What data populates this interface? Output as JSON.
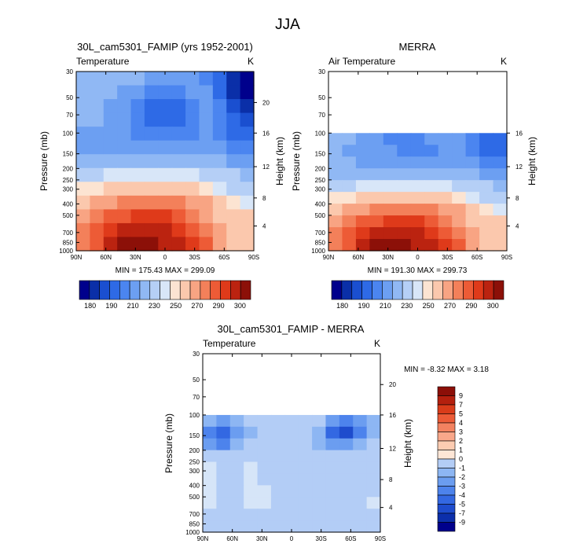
{
  "figure": {
    "title": "JJA"
  },
  "colors": {
    "temperature_scale": [
      "#00008c",
      "#0a2fa8",
      "#1a4fd0",
      "#2e6ae6",
      "#4b85f0",
      "#6c9ff2",
      "#90b8f4",
      "#b5cff6",
      "#d8e6f8",
      "#fce4d2",
      "#fbc8ad",
      "#f8a483",
      "#f3805a",
      "#ed5b36",
      "#df3a1a",
      "#bb2310",
      "#8c1008"
    ],
    "difference_scale": [
      "#00008c",
      "#0c2fab",
      "#1e4ccd",
      "#3368e2",
      "#4d83ec",
      "#6b9df0",
      "#8db6f3",
      "#b3cdf6",
      "#d6e5f8",
      "#fde6d6",
      "#fcccb2",
      "#f9a78a",
      "#f38260",
      "#ec5b37",
      "#d93c1a",
      "#b4200e",
      "#8c0f08"
    ]
  },
  "chart_data": [
    {
      "type": "heatmap",
      "title": "30L_cam5301_FAMIP (yrs 1952-2001)",
      "left_label": "Temperature",
      "right_label": "K",
      "xlabel": "",
      "ylabel": "Pressure (mb)",
      "y2label": "Height (km)",
      "x_ticks": [
        "90N",
        "60N",
        "30N",
        "0",
        "30S",
        "60S",
        "90S"
      ],
      "y_ticks": [
        "30",
        "50",
        "70",
        "100",
        "150",
        "200",
        "250",
        "300",
        "400",
        "500",
        "700",
        "850",
        "1000"
      ],
      "y2_ticks": [
        "20",
        "16",
        "12",
        "8",
        "4"
      ],
      "stats": "MIN = 175.43  MAX = 299.09",
      "colorbar_labels": [
        "180",
        "190",
        "210",
        "230",
        "250",
        "270",
        "290",
        "300"
      ],
      "colorbar_levels": 17,
      "data_top_pressure": 30,
      "grid": [
        [
          6,
          6,
          6,
          6,
          6,
          5,
          5,
          5,
          5,
          4,
          3,
          1,
          0
        ],
        [
          6,
          6,
          6,
          5,
          5,
          4,
          4,
          4,
          5,
          5,
          3,
          1,
          0
        ],
        [
          6,
          6,
          5,
          5,
          4,
          3,
          3,
          3,
          4,
          5,
          4,
          2,
          1
        ],
        [
          6,
          6,
          5,
          5,
          4,
          3,
          3,
          3,
          4,
          5,
          4,
          3,
          2
        ],
        [
          5,
          5,
          5,
          5,
          4,
          4,
          4,
          4,
          4,
          5,
          4,
          3,
          3
        ],
        [
          5,
          5,
          5,
          5,
          5,
          5,
          5,
          5,
          5,
          5,
          5,
          4,
          4
        ],
        [
          6,
          6,
          6,
          6,
          6,
          6,
          6,
          6,
          6,
          6,
          6,
          5,
          5
        ],
        [
          7,
          7,
          8,
          8,
          8,
          8,
          8,
          8,
          8,
          7,
          7,
          7,
          6
        ],
        [
          9,
          9,
          10,
          10,
          10,
          10,
          10,
          10,
          10,
          9,
          8,
          7,
          7
        ],
        [
          10,
          11,
          11,
          12,
          12,
          12,
          12,
          12,
          11,
          11,
          10,
          9,
          8
        ],
        [
          11,
          12,
          13,
          13,
          14,
          14,
          14,
          13,
          12,
          11,
          10,
          10,
          10
        ],
        [
          12,
          13,
          14,
          15,
          15,
          15,
          15,
          14,
          13,
          12,
          11,
          10,
          10
        ],
        [
          12,
          13,
          15,
          16,
          16,
          16,
          15,
          15,
          14,
          13,
          11,
          10,
          10
        ]
      ]
    },
    {
      "type": "heatmap",
      "title": "MERRA",
      "left_label": "Air Temperature",
      "right_label": "K",
      "xlabel": "",
      "ylabel": "Pressure (mb)",
      "y2label": "Height (km)",
      "x_ticks": [
        "90N",
        "60N",
        "30N",
        "0",
        "30S",
        "60S",
        "90S"
      ],
      "y_ticks": [
        "30",
        "50",
        "70",
        "100",
        "150",
        "200",
        "250",
        "300",
        "400",
        "500",
        "700",
        "850",
        "1000"
      ],
      "y2_ticks": [
        "16",
        "12",
        "8",
        "4"
      ],
      "stats": "MIN = 191.30  MAX = 299.73",
      "colorbar_labels": [
        "180",
        "190",
        "210",
        "230",
        "250",
        "270",
        "290",
        "300"
      ],
      "colorbar_levels": 17,
      "data_top_pressure": 100,
      "grid": [
        [
          6,
          6,
          5,
          5,
          4,
          4,
          4,
          5,
          5,
          5,
          4,
          3,
          3
        ],
        [
          6,
          5,
          5,
          5,
          5,
          4,
          4,
          4,
          5,
          5,
          4,
          3,
          3
        ],
        [
          6,
          6,
          5,
          5,
          5,
          5,
          5,
          5,
          5,
          5,
          5,
          4,
          4
        ],
        [
          6,
          6,
          6,
          6,
          6,
          6,
          6,
          6,
          6,
          6,
          6,
          5,
          5
        ],
        [
          7,
          7,
          8,
          8,
          8,
          8,
          8,
          8,
          8,
          7,
          7,
          7,
          6
        ],
        [
          9,
          9,
          10,
          10,
          10,
          10,
          10,
          10,
          10,
          9,
          8,
          7,
          7
        ],
        [
          10,
          11,
          11,
          12,
          12,
          12,
          12,
          12,
          11,
          11,
          10,
          9,
          8
        ],
        [
          11,
          12,
          13,
          13,
          14,
          14,
          14,
          13,
          12,
          11,
          10,
          10,
          10
        ],
        [
          12,
          13,
          14,
          15,
          15,
          15,
          15,
          14,
          13,
          12,
          11,
          10,
          10
        ],
        [
          12,
          13,
          15,
          16,
          16,
          16,
          15,
          15,
          14,
          13,
          11,
          10,
          10
        ]
      ]
    },
    {
      "type": "heatmap",
      "title": "30L_cam5301_FAMIP - MERRA",
      "left_label": "Temperature",
      "right_label": "K",
      "xlabel": "",
      "ylabel": "Pressure (mb)",
      "y2label": "Height (km)",
      "x_ticks": [
        "90N",
        "60N",
        "30N",
        "0",
        "30S",
        "60S",
        "90S"
      ],
      "y_ticks": [
        "30",
        "50",
        "70",
        "100",
        "150",
        "200",
        "250",
        "300",
        "400",
        "500",
        "700",
        "850",
        "1000"
      ],
      "y2_ticks": [
        "20",
        "16",
        "12",
        "8",
        "4"
      ],
      "stats": "MIN = -8.32  MAX =  3.18",
      "colorbar_labels": [
        "9",
        "7",
        "5",
        "4",
        "3",
        "2",
        "1",
        "0",
        "-1",
        "-2",
        "-3",
        "-4",
        "-5",
        "-7",
        "-9"
      ],
      "colorbar_levels": 16,
      "data_top_pressure": 100,
      "grid": [
        [
          6,
          5,
          6,
          7,
          7,
          7,
          7,
          7,
          7,
          5,
          4,
          5,
          6
        ],
        [
          4,
          3,
          5,
          6,
          7,
          7,
          7,
          7,
          6,
          3,
          2,
          4,
          6
        ],
        [
          5,
          4,
          6,
          7,
          7,
          7,
          7,
          7,
          6,
          5,
          5,
          6,
          7
        ],
        [
          7,
          7,
          7,
          7,
          7,
          7,
          7,
          7,
          7,
          7,
          7,
          7,
          7
        ],
        [
          8,
          7,
          7,
          8,
          7,
          7,
          7,
          7,
          7,
          7,
          7,
          7,
          7
        ],
        [
          8,
          7,
          7,
          8,
          7,
          7,
          7,
          7,
          7,
          7,
          7,
          7,
          7
        ],
        [
          8,
          7,
          7,
          8,
          8,
          7,
          7,
          7,
          7,
          7,
          7,
          7,
          7
        ],
        [
          8,
          7,
          7,
          8,
          8,
          7,
          7,
          7,
          7,
          7,
          7,
          7,
          8
        ],
        [
          7,
          7,
          7,
          7,
          7,
          7,
          7,
          7,
          7,
          7,
          7,
          7,
          7
        ],
        [
          7,
          7,
          7,
          7,
          7,
          7,
          7,
          7,
          7,
          7,
          7,
          7,
          7
        ]
      ]
    }
  ]
}
